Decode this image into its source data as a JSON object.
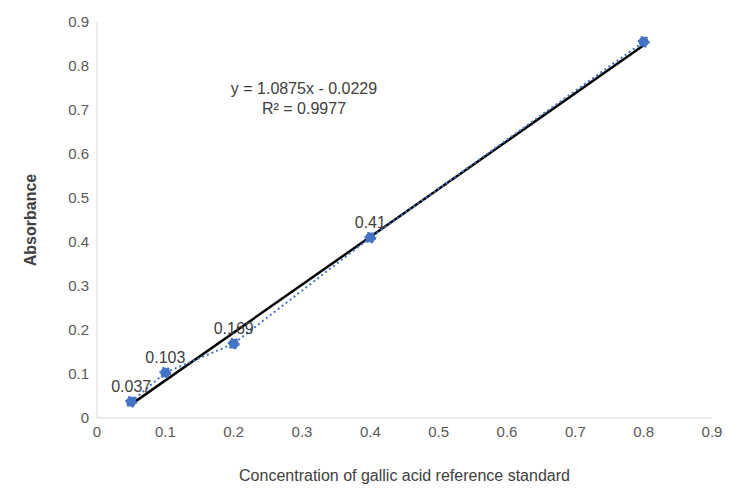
{
  "chart_data": {
    "type": "scatter",
    "x_label": "Concentration of gallic acid reference standard",
    "y_label": "Absorbance",
    "series": [
      {
        "color": "#4472c4",
        "marker": "circle",
        "line_style": "dotted",
        "x": [
          0.05,
          0.1,
          0.2,
          0.4,
          0.8
        ],
        "values": [
          0.037,
          0.103,
          0.169,
          0.41,
          0.855
        ],
        "value_labels": [
          "0.037",
          "0.103",
          "0.169",
          "0.41",
          null
        ]
      }
    ],
    "trendline": {
      "color": "#000000",
      "line_style": "solid",
      "x": [
        0.05,
        0.8
      ],
      "values": [
        0.031,
        0.847
      ]
    },
    "annotations": [
      {
        "text": "y = 1.0875x - 0.0229"
      },
      {
        "text": "R² = 0.9977"
      }
    ],
    "data_labels": true,
    "grid": false,
    "xlim": [
      0,
      0.9
    ],
    "xticks": [
      0,
      0.1,
      0.2,
      0.3,
      0.4,
      0.5,
      0.6,
      0.7,
      0.8,
      0.9
    ],
    "ylim": [
      0,
      0.9
    ],
    "yticks": [
      0,
      0.1,
      0.2,
      0.3,
      0.4,
      0.5,
      0.6,
      0.7,
      0.8,
      0.9
    ]
  }
}
